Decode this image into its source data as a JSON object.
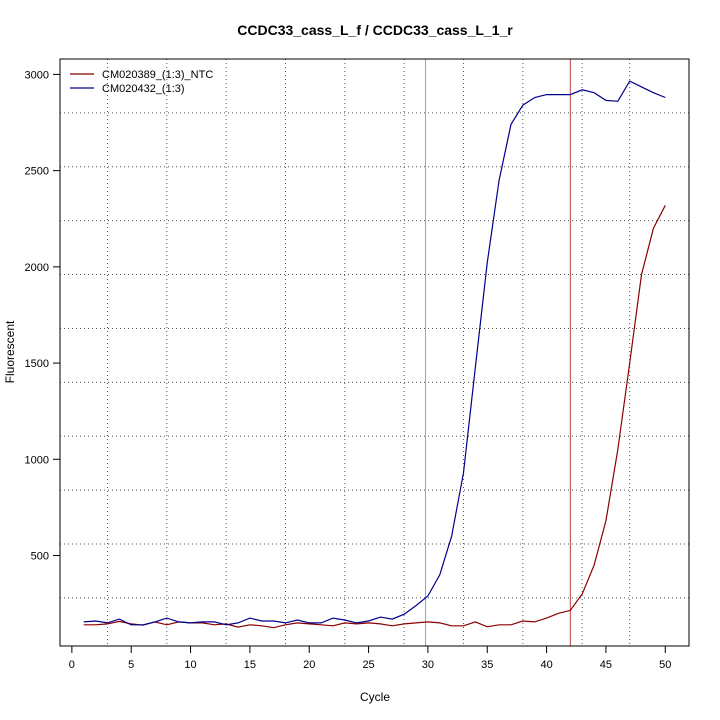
{
  "chart_data": {
    "type": "line",
    "title": "CCDC33_cass_L_f / CCDC33_cass_L_1_r",
    "xlabel": "Cycle",
    "ylabel": "Fluorescent",
    "xlim": [
      -1,
      52
    ],
    "ylim": [
      30,
      3080
    ],
    "x_ticks": [
      0,
      5,
      10,
      15,
      20,
      25,
      30,
      35,
      40,
      45,
      50
    ],
    "y_ticks": [
      500,
      1000,
      1500,
      2000,
      2500,
      3000
    ],
    "vgrid": [
      3,
      8,
      13,
      18,
      23,
      28,
      33,
      38,
      43,
      47
    ],
    "hgrid": [
      280,
      560,
      840,
      1120,
      1400,
      1680,
      1960,
      2240,
      2520,
      2800
    ],
    "legend_position": "top-left",
    "threshold_lines": [
      {
        "x": 29.8,
        "color": "#00e5e5"
      },
      {
        "x": 42.0,
        "color": "#c04040"
      }
    ],
    "series": [
      {
        "name": "CM020389_(1:3)_NTC",
        "color": "#8b0000",
        "x": [
          1,
          2,
          3,
          4,
          5,
          6,
          7,
          8,
          9,
          10,
          11,
          12,
          13,
          14,
          15,
          16,
          17,
          18,
          19,
          20,
          21,
          22,
          23,
          24,
          25,
          26,
          27,
          28,
          29,
          30,
          31,
          32,
          33,
          34,
          35,
          36,
          37,
          38,
          39,
          40,
          41,
          42,
          43,
          44,
          45,
          46,
          47,
          48,
          49,
          50
        ],
        "values": [
          140,
          140,
          145,
          158,
          145,
          138,
          155,
          140,
          155,
          150,
          150,
          140,
          145,
          128,
          140,
          135,
          125,
          140,
          150,
          145,
          140,
          135,
          150,
          145,
          150,
          145,
          135,
          145,
          150,
          155,
          150,
          135,
          135,
          155,
          130,
          140,
          140,
          160,
          155,
          175,
          200,
          215,
          300,
          450,
          680,
          1050,
          1500,
          1960,
          2200,
          2320
        ]
      },
      {
        "name": "CM020432_(1:3)",
        "color": "#00008b",
        "x": [
          1,
          2,
          3,
          4,
          5,
          6,
          7,
          8,
          9,
          10,
          11,
          12,
          13,
          14,
          15,
          16,
          17,
          18,
          19,
          20,
          21,
          22,
          23,
          24,
          25,
          26,
          27,
          28,
          29,
          30,
          31,
          32,
          33,
          34,
          35,
          36,
          37,
          38,
          39,
          40,
          41,
          42,
          43,
          44,
          45,
          46,
          47,
          48,
          49,
          50
        ],
        "values": [
          155,
          160,
          150,
          170,
          140,
          140,
          155,
          175,
          155,
          150,
          155,
          155,
          140,
          150,
          175,
          160,
          160,
          150,
          165,
          150,
          150,
          175,
          165,
          150,
          160,
          180,
          170,
          195,
          240,
          290,
          400,
          600,
          930,
          1480,
          2020,
          2450,
          2740,
          2840,
          2880,
          2895,
          2895,
          2895,
          2920,
          2905,
          2865,
          2860,
          2965,
          2935,
          2905,
          2880
        ]
      }
    ]
  }
}
